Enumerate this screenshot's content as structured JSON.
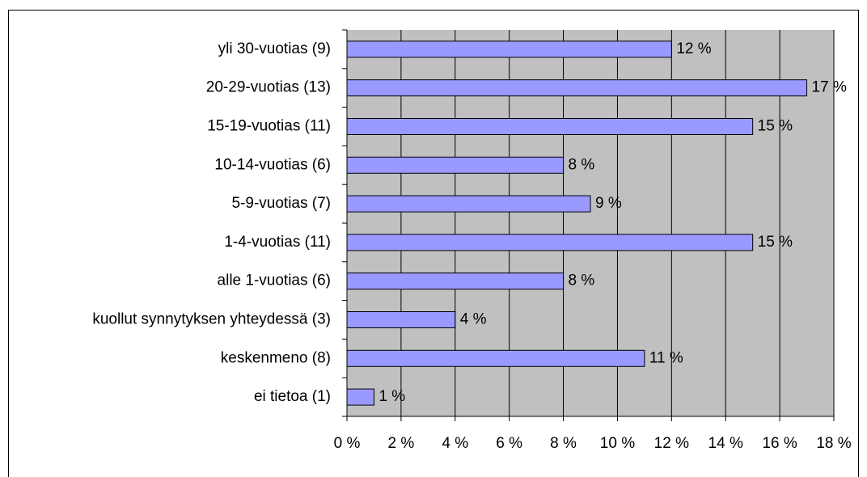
{
  "chart_data": {
    "type": "bar",
    "orientation": "horizontal",
    "categories": [
      "yli 30-vuotias (9)",
      "20-29-vuotias (13)",
      "15-19-vuotias (11)",
      "10-14-vuotias (6)",
      "5-9-vuotias (7)",
      "1-4-vuotias (11)",
      "alle 1-vuotias (6)",
      "kuollut synnytyksen yhteydessä (3)",
      "keskenmeno (8)",
      "ei tietoa (1)"
    ],
    "values": [
      12,
      17,
      15,
      8,
      9,
      15,
      8,
      4,
      11,
      1
    ],
    "value_labels": [
      "12 %",
      "17 %",
      "15 %",
      "8 %",
      "9 %",
      "15 %",
      "8 %",
      "4 %",
      "11 %",
      "1 %"
    ],
    "color": "#9999ff",
    "xlim": [
      0,
      18
    ],
    "xticks": [
      {
        "value": 0,
        "label": "0 %"
      },
      {
        "value": 2,
        "label": "2 %"
      },
      {
        "value": 4,
        "label": "4 %"
      },
      {
        "value": 6,
        "label": "6 %"
      },
      {
        "value": 8,
        "label": "8 %"
      },
      {
        "value": 10,
        "label": "10 %"
      },
      {
        "value": 12,
        "label": "12 %"
      },
      {
        "value": 14,
        "label": "14 %"
      },
      {
        "value": 16,
        "label": "16 %"
      },
      {
        "value": 18,
        "label": "18 %"
      }
    ],
    "grid": true
  }
}
